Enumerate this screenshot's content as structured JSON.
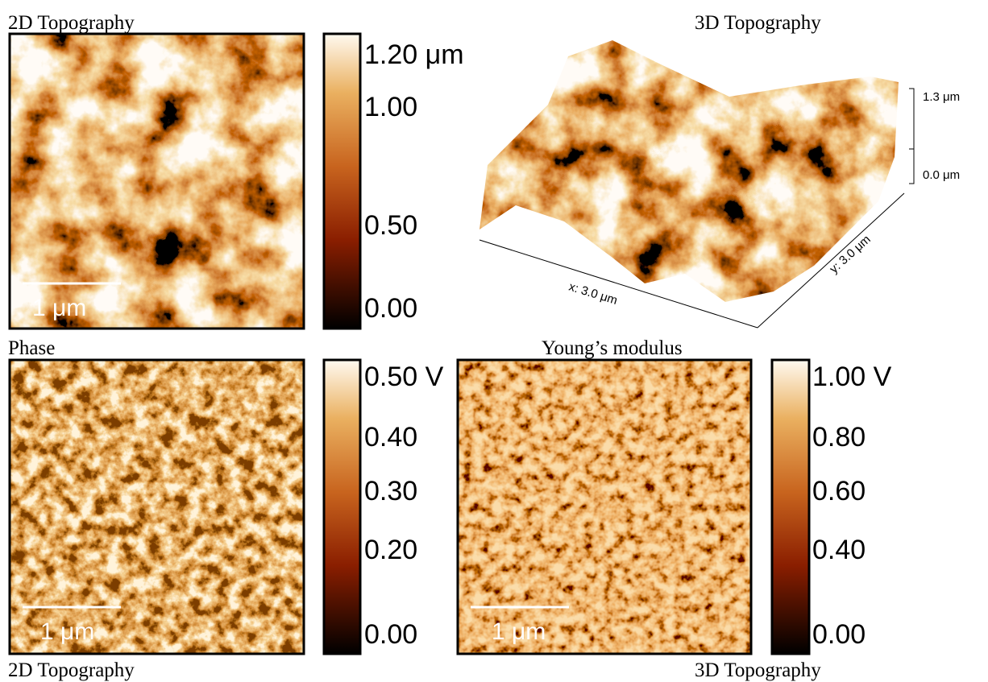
{
  "panels": [
    {
      "title": "2D Topography",
      "scale_bar": "1 μm",
      "colorbar": [
        "1.20 μm",
        "1.00",
        "0.50",
        "0.00"
      ]
    },
    {
      "title": "Phase",
      "scale_bar": "1 μm",
      "colorbar": [
        "0.50 V",
        "0.40",
        "0.30",
        "0.20",
        "0.00"
      ]
    },
    {
      "title": "Young’s modulus",
      "scale_bar": "1 μm",
      "colorbar": [
        "1.00 V",
        "0.80",
        "0.60",
        "0.40",
        "0.00"
      ]
    }
  ],
  "surface": {
    "title": "3D Topography",
    "z_labels": [
      "1.3 μm",
      "0.0 μm"
    ],
    "x_label": "x: 3.0 μm",
    "y_label": "y: 3.0 μm"
  },
  "footer": [
    "2D Topography",
    "3D Topography"
  ]
}
